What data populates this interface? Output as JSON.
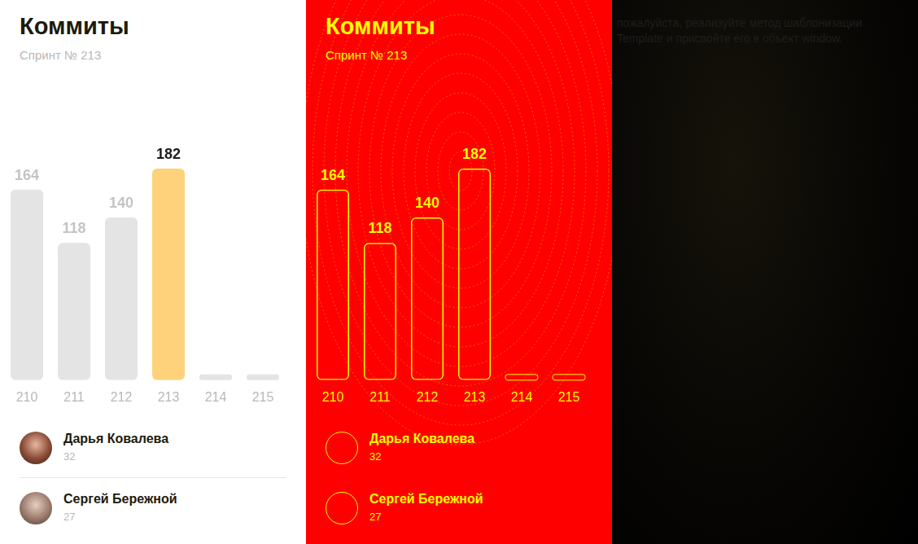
{
  "header": {
    "title": "Коммиты",
    "subtitle": "Спринт № 213"
  },
  "chart_data": {
    "type": "bar",
    "categories": [
      "210",
      "211",
      "212",
      "213",
      "214",
      "215"
    ],
    "values": [
      164,
      118,
      140,
      182,
      null,
      null
    ],
    "colors": [
      "#e4e4e4",
      "#e4e4e4",
      "#e4e4e4",
      "#fdd27a",
      "#e4e4e4",
      "#e4e4e4"
    ],
    "ylim": [
      0,
      182
    ],
    "data_labels": true,
    "tick_labels": "x",
    "grid": false
  },
  "users": [
    {
      "name": "Дарья Ковалева",
      "value": 32
    },
    {
      "name": "Сергей Бережной",
      "value": 27
    }
  ],
  "background_text": [
    "пожалуйста, реализуйте метод шаблонизации",
    "Template и присвойте его в объект window."
  ]
}
